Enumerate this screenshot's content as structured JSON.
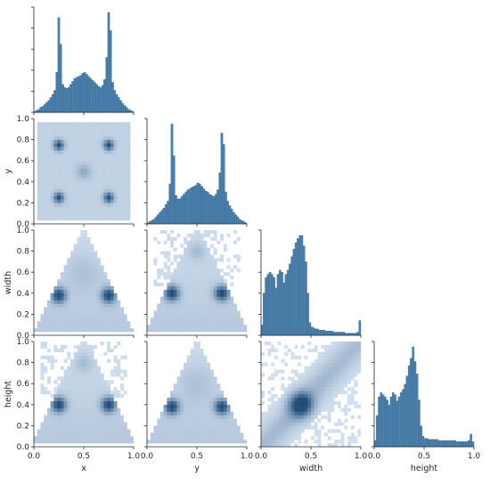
{
  "chart_data": {
    "type": "pairplot",
    "variables": [
      "x",
      "y",
      "width",
      "height"
    ],
    "bar_color": "#4c82ad",
    "cell_color_light": "#e4eefb",
    "cell_color_dark": "#1f4e7a",
    "ticks": [
      "0.0",
      "0.2",
      "0.4",
      "0.6",
      "0.8",
      "1.0"
    ],
    "xticks": [
      "0.0",
      "0.5",
      "1.0"
    ],
    "diagonal": [
      {
        "variable": "x",
        "description": "bimodal histogram with spikes near 0.25 and 0.75 and a broad hump near 0.5",
        "bins_x": [
          0.0,
          0.02,
          0.04,
          0.06,
          0.08,
          0.1,
          0.12,
          0.14,
          0.16,
          0.18,
          0.2,
          0.22,
          0.24,
          0.26,
          0.28,
          0.3,
          0.32,
          0.34,
          0.36,
          0.38,
          0.4,
          0.42,
          0.44,
          0.46,
          0.48,
          0.5,
          0.52,
          0.54,
          0.56,
          0.58,
          0.6,
          0.62,
          0.64,
          0.66,
          0.68,
          0.7,
          0.72,
          0.74,
          0.76,
          0.78,
          0.8,
          0.82,
          0.84,
          0.86,
          0.88,
          0.9,
          0.92,
          0.94,
          0.96,
          0.98
        ],
        "heights": [
          1,
          2,
          3,
          5,
          6,
          8,
          10,
          12,
          15,
          18,
          22,
          40,
          95,
          68,
          28,
          25,
          24,
          25,
          28,
          31,
          34,
          35,
          36,
          37,
          39,
          40,
          38,
          36,
          34,
          32,
          30,
          28,
          26,
          25,
          27,
          33,
          55,
          100,
          82,
          30,
          22,
          18,
          15,
          12,
          9,
          7,
          5,
          3,
          2,
          1
        ]
      },
      {
        "variable": "y",
        "description": "bimodal histogram with spikes near 0.25 and 0.75 and a broad hump near 0.5",
        "bins_x": [
          0.0,
          0.02,
          0.04,
          0.06,
          0.08,
          0.1,
          0.12,
          0.14,
          0.16,
          0.18,
          0.2,
          0.22,
          0.24,
          0.26,
          0.28,
          0.3,
          0.32,
          0.34,
          0.36,
          0.38,
          0.4,
          0.42,
          0.44,
          0.46,
          0.48,
          0.5,
          0.52,
          0.54,
          0.56,
          0.58,
          0.6,
          0.62,
          0.64,
          0.66,
          0.68,
          0.7,
          0.72,
          0.74,
          0.76,
          0.78,
          0.8,
          0.82,
          0.84,
          0.86,
          0.88,
          0.9,
          0.92,
          0.94,
          0.96,
          0.98
        ],
        "heights": [
          1,
          2,
          3,
          4,
          6,
          8,
          10,
          12,
          14,
          17,
          20,
          35,
          88,
          60,
          25,
          22,
          22,
          24,
          26,
          28,
          30,
          31,
          32,
          33,
          34,
          36,
          35,
          33,
          31,
          29,
          28,
          26,
          25,
          24,
          26,
          30,
          45,
          80,
          70,
          28,
          20,
          16,
          13,
          10,
          8,
          6,
          4,
          3,
          2,
          1
        ]
      },
      {
        "variable": "width",
        "description": "histogram rising to a peak near 0.4, with a long low tail to 1.0 and a small spike at 1.0",
        "bins_x": [
          0.0,
          0.02,
          0.04,
          0.06,
          0.08,
          0.1,
          0.12,
          0.14,
          0.16,
          0.18,
          0.2,
          0.22,
          0.24,
          0.26,
          0.28,
          0.3,
          0.32,
          0.34,
          0.36,
          0.38,
          0.4,
          0.42,
          0.44,
          0.46,
          0.48,
          0.5,
          0.52,
          0.54,
          0.56,
          0.58,
          0.6,
          0.62,
          0.64,
          0.66,
          0.68,
          0.7,
          0.72,
          0.74,
          0.76,
          0.78,
          0.8,
          0.82,
          0.84,
          0.86,
          0.88,
          0.9,
          0.92,
          0.94,
          0.96,
          0.98
        ],
        "heights": [
          10,
          40,
          55,
          58,
          60,
          58,
          55,
          45,
          58,
          62,
          60,
          50,
          58,
          62,
          68,
          75,
          82,
          88,
          92,
          95,
          95,
          85,
          70,
          40,
          12,
          8,
          7,
          6,
          6,
          5,
          5,
          5,
          4,
          4,
          4,
          4,
          3,
          3,
          3,
          3,
          3,
          3,
          2,
          2,
          2,
          2,
          2,
          2,
          3,
          14
        ]
      },
      {
        "variable": "height",
        "description": "histogram rising to a peak near 0.4, with a long low tail to 1.0 and a small spike at 1.0",
        "bins_x": [
          0.0,
          0.02,
          0.04,
          0.06,
          0.08,
          0.1,
          0.12,
          0.14,
          0.16,
          0.18,
          0.2,
          0.22,
          0.24,
          0.26,
          0.28,
          0.3,
          0.32,
          0.34,
          0.36,
          0.38,
          0.4,
          0.42,
          0.44,
          0.46,
          0.48,
          0.5,
          0.52,
          0.54,
          0.56,
          0.58,
          0.6,
          0.62,
          0.64,
          0.66,
          0.68,
          0.7,
          0.72,
          0.74,
          0.76,
          0.78,
          0.8,
          0.82,
          0.84,
          0.86,
          0.88,
          0.9,
          0.92,
          0.94,
          0.96,
          0.98
        ],
        "heights": [
          6,
          30,
          48,
          52,
          50,
          48,
          45,
          40,
          48,
          52,
          50,
          44,
          48,
          52,
          55,
          60,
          68,
          78,
          85,
          96,
          82,
          70,
          45,
          20,
          10,
          8,
          8,
          7,
          7,
          7,
          7,
          7,
          6,
          6,
          6,
          6,
          6,
          6,
          6,
          6,
          6,
          5,
          5,
          5,
          5,
          5,
          5,
          6,
          12,
          5
        ]
      }
    ],
    "pairs": [
      {
        "row": "y",
        "col": "x",
        "pattern": "uniform square with four dense spots at (0.25,0.25),(0.75,0.25),(0.25,0.75),(0.75,0.75) and a faint spot at (0.5,0.5)"
      },
      {
        "row": "width",
        "col": "x",
        "pattern": "triangle with apex at x=0.5,width=1.0; dense clusters near x=0.25 and x=0.75 at width~0.4"
      },
      {
        "row": "width",
        "col": "y",
        "pattern": "triangle with apex at y=0.5,width=1.0; dense clusters near y=0.25 and y=0.75 at width~0.4; scattered points across the top"
      },
      {
        "row": "height",
        "col": "x",
        "pattern": "triangle with apex at x=0.5,height=1.0; dense clusters near x=0.25 and x=0.75 at height~0.4; scattered points across the top"
      },
      {
        "row": "height",
        "col": "y",
        "pattern": "triangle with apex at y=0.5,height=1.0; dense clusters near y=0.25 and y=0.75 at height~0.4"
      },
      {
        "row": "height",
        "col": "width",
        "pattern": "positive correlation; dense diagonal cloud centered near (0.4,0.4), spreading to (1.0,1.0)"
      }
    ]
  }
}
